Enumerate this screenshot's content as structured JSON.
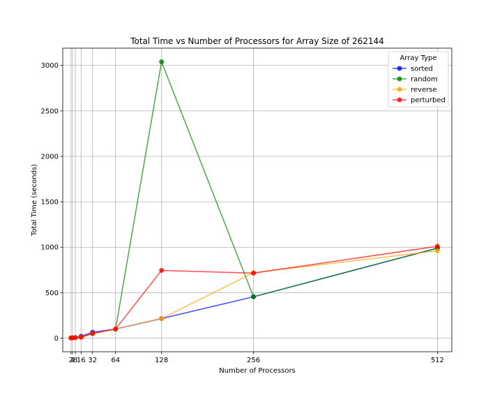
{
  "chart_data": {
    "type": "line",
    "title": "Total Time vs Number of Processors for Array Size of 262144",
    "xlabel": "Number of Processors",
    "ylabel": "Total Time (seconds)",
    "xlim": [
      -9.5,
      532
    ],
    "ylim": [
      -150,
      3190
    ],
    "x_ticks": [
      2,
      4,
      8,
      16,
      32,
      64,
      128,
      256,
      512
    ],
    "x_tick_labels": [
      "2",
      "4",
      "8",
      "16",
      "32",
      "64",
      "128",
      "256",
      "512"
    ],
    "y_ticks": [
      0,
      500,
      1000,
      1500,
      2000,
      2500,
      3000
    ],
    "y_tick_labels": [
      "0",
      "500",
      "1000",
      "1500",
      "2000",
      "2500",
      "3000"
    ],
    "grid": true,
    "legend_title": "Array Type",
    "legend_position": "top-right",
    "x": [
      2,
      4,
      8,
      16,
      32,
      64,
      128,
      256,
      512
    ],
    "series": [
      {
        "name": "sorted",
        "color": "#0000ff",
        "values": [
          2,
          3,
          6,
          20,
          65,
          100,
          215,
          455,
          990
        ]
      },
      {
        "name": "random",
        "color": "#008000",
        "values": [
          2,
          3,
          5,
          10,
          50,
          100,
          3040,
          455,
          990
        ]
      },
      {
        "name": "reverse",
        "color": "#ffa500",
        "values": [
          2,
          3,
          5,
          10,
          50,
          100,
          215,
          720,
          960
        ]
      },
      {
        "name": "perturbed",
        "color": "#ff0000",
        "values": [
          2,
          3,
          5,
          10,
          50,
          100,
          745,
          715,
          1010
        ]
      }
    ]
  }
}
